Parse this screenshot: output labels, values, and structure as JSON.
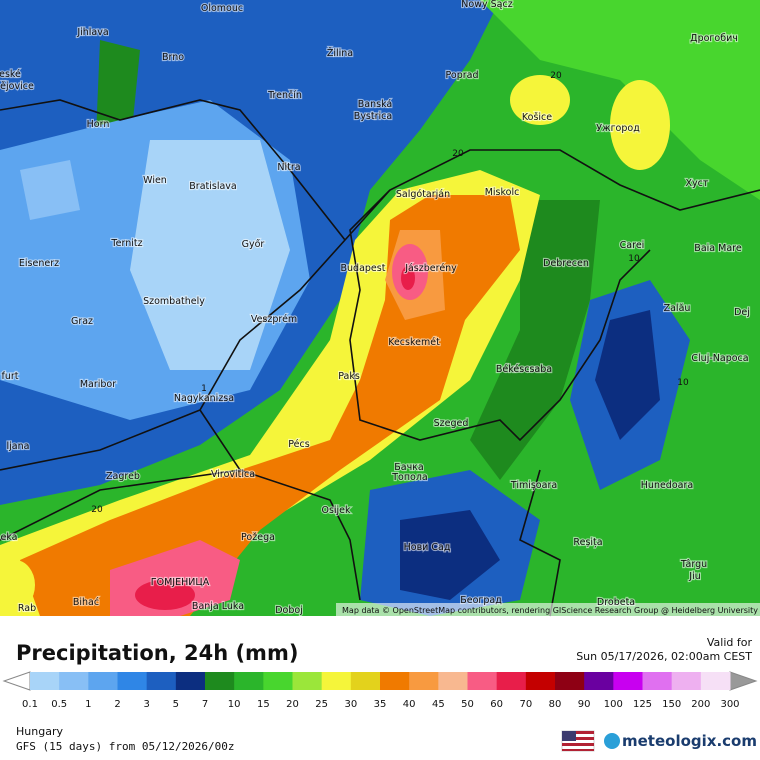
{
  "header": {
    "title": "Precipitation, 24h (mm)",
    "valid_label": "Valid for",
    "valid_time": "Sun 05/17/2026, 02:00am CEST"
  },
  "map": {
    "places": [
      "Olomouc",
      "Nowy Sącz",
      "Jihlava",
      "Brno",
      "Žilina",
      "Poprad",
      "Дрогобич",
      "eské",
      "ějovice",
      "Horn",
      "Trenčín",
      "Banská",
      "Bystrica",
      "Košice",
      "Ужгород",
      "Nitra",
      "Wien",
      "Bratislava",
      "Salgótarján",
      "Miskolc",
      "Хуст",
      "Ternitz",
      "Győr",
      "Carei",
      "Baia Mare",
      "Eisenerz",
      "Budapest",
      "Jászberény",
      "Debrecen",
      "Zalău",
      "Szombathely",
      "Veszprém",
      "Dej",
      "Graz",
      "Kecskemét",
      "Cluj-Napoca",
      "furt",
      "Maribor",
      "Paks",
      "Békéscsaba",
      "Nagykanizsa",
      "Szeged",
      "ljana",
      "Pécs",
      "Zagreb",
      "Virovitica",
      "Бачка",
      "Топола",
      "Timișoara",
      "Hunedoara",
      "Osijek",
      "Požega",
      "Нови Сад",
      "Reșița",
      "eka",
      "Târgu",
      "Jiu",
      "ГОМЈЕНИЦА",
      "Bihać",
      "Banja Luka",
      "Doboj",
      "Београд",
      "Drobeta",
      "Rab"
    ],
    "contour_labels": [
      "20",
      "20",
      "10",
      "1",
      "10",
      "20"
    ],
    "attribution": "Map data © OpenStreetMap contributors, rendering GIScience Research Group @ Heidelberg University"
  },
  "legend": {
    "labels": [
      "0.1",
      "0.5",
      "1",
      "2",
      "3",
      "5",
      "7",
      "10",
      "15",
      "20",
      "25",
      "30",
      "35",
      "40",
      "45",
      "50",
      "60",
      "70",
      "80",
      "90",
      "100",
      "125",
      "150",
      "200",
      "300"
    ],
    "colors": [
      "#a8d4f8",
      "#88bff5",
      "#5da5ef",
      "#2f86e6",
      "#1d5fc0",
      "#0c2e80",
      "#1e8a1e",
      "#2bb52b",
      "#48d62e",
      "#9be63a",
      "#f5f53a",
      "#e3d21c",
      "#f07a00",
      "#f89a40",
      "#f8b890",
      "#f85c84",
      "#e81e4a",
      "#c40000",
      "#8e0014",
      "#6a00a0",
      "#c800f0",
      "#e070f0",
      "#eeb0f0",
      "#f6e0f6"
    ]
  },
  "footer": {
    "region": "Hungary",
    "model": "GFS (15 days) from 05/12/2026/00z",
    "brand": "meteologix.com"
  }
}
